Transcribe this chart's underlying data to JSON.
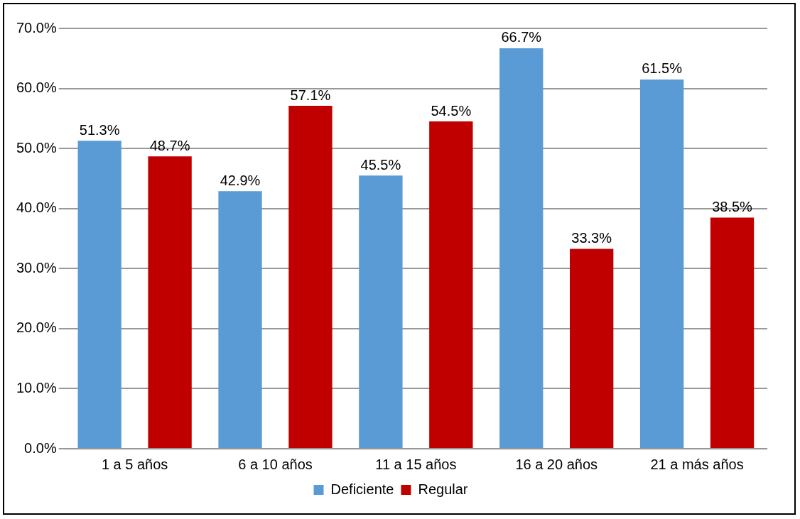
{
  "chart_data": {
    "type": "bar",
    "categories": [
      "1 a 5 años",
      "6 a 10 años",
      "11 a 15 años",
      "16 a 20 años",
      "21 a más años"
    ],
    "series": [
      {
        "name": "Deficiente",
        "color": "#5b9bd5",
        "values": [
          51.3,
          42.9,
          45.5,
          66.7,
          61.5
        ],
        "value_labels": [
          "51.3%",
          "42.9%",
          "45.5%",
          "66.7%",
          "61.5%"
        ]
      },
      {
        "name": "Regular",
        "color": "#c00000",
        "values": [
          48.7,
          57.1,
          54.5,
          33.3,
          38.5
        ],
        "value_labels": [
          "48.7%",
          "57.1%",
          "54.5%",
          "33.3%",
          "38.5%"
        ]
      }
    ],
    "ylim": [
      0,
      70
    ],
    "yticks": [
      {
        "value": 0,
        "label": "0.0%"
      },
      {
        "value": 10,
        "label": "10.0%"
      },
      {
        "value": 20,
        "label": "20.0%"
      },
      {
        "value": 30,
        "label": "30.0%"
      },
      {
        "value": 40,
        "label": "40.0%"
      },
      {
        "value": 50,
        "label": "50.0%"
      },
      {
        "value": 60,
        "label": "60.0%"
      },
      {
        "value": 70,
        "label": "70.0%"
      }
    ],
    "grid": "y",
    "legend": "bottom"
  }
}
